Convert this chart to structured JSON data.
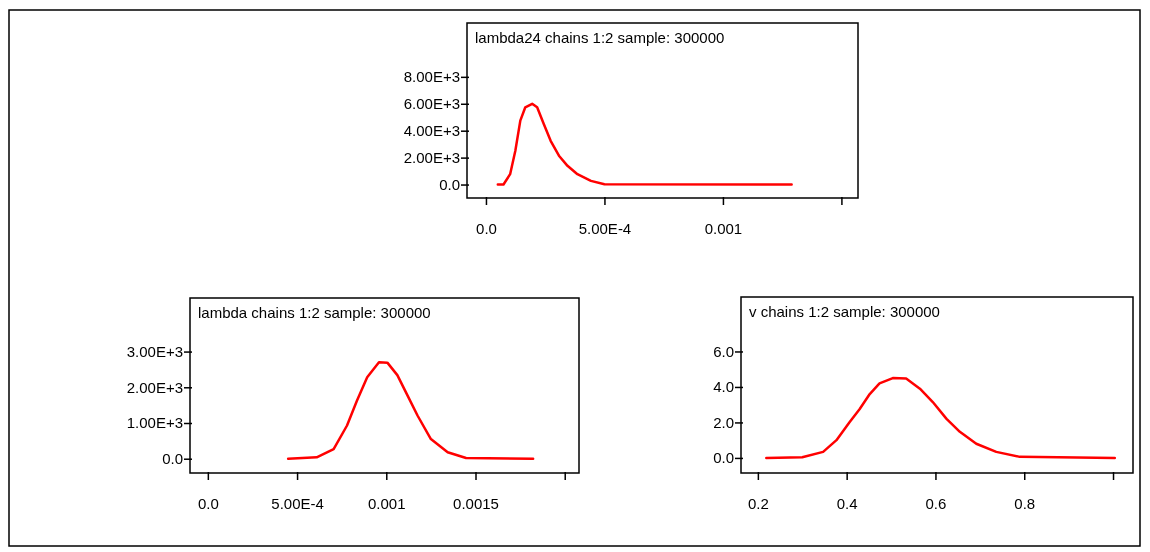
{
  "chart_data": [
    {
      "type": "line",
      "title": "lambda24 chains 1:2 sample: 300000",
      "xlim": [
        -8e-05,
        0.00157
      ],
      "ylim": [
        -1000,
        12000
      ],
      "xticks": [
        {
          "value": 0,
          "label": "0.0"
        },
        {
          "value": 0.0005,
          "label": "5.00E-4"
        },
        0.001,
        {
          "value": 0.0015,
          "label": null
        }
      ],
      "yticks": [
        {
          "value": 0,
          "label": "0.0"
        },
        {
          "value": 2000,
          "label": "2.00E+3"
        },
        {
          "value": 4000,
          "label": "4.00E+3"
        },
        {
          "value": 6000,
          "label": "6.00E+3"
        },
        {
          "value": 8000,
          "label": "8.00E+3"
        }
      ],
      "series": [
        {
          "color": "#ff0000",
          "x": [
            5e-05,
            7.4e-05,
            0.000102,
            0.000124,
            0.000145,
            0.000166,
            0.000195,
            0.000216,
            0.000244,
            0.000273,
            0.000308,
            0.000344,
            0.000386,
            0.000443,
            0.0005,
            0.00129
          ],
          "values": [
            0,
            0,
            770,
            2510,
            4750,
            5740,
            6000,
            5740,
            4500,
            3250,
            2140,
            1390,
            770,
            270,
            25,
            0
          ]
        }
      ]
    },
    {
      "type": "line",
      "title": "lambda chains 1:2 sample: 300000",
      "xlim": [
        -0.0001,
        0.00208
      ],
      "ylim": [
        -400,
        4500
      ],
      "xticks": [
        {
          "value": 0,
          "label": "0.0"
        },
        {
          "value": 0.0005,
          "label": "5.00E-4"
        },
        0.001,
        0.0015,
        {
          "value": 0.002,
          "label": null
        }
      ],
      "yticks": [
        {
          "value": 0,
          "label": "0.0"
        },
        {
          "value": 1000,
          "label": "1.00E+3"
        },
        {
          "value": 2000,
          "label": "2.00E+3"
        },
        {
          "value": 3000,
          "label": "3.00E+3"
        }
      ],
      "series": [
        {
          "color": "#ff0000",
          "x": [
            0.00045,
            0.00061,
            0.000705,
            0.00078,
            0.000836,
            0.000893,
            0.000959,
            0.001006,
            0.001062,
            0.001118,
            0.001175,
            0.00125,
            0.001344,
            0.001447,
            0.001823
          ],
          "values": [
            0,
            40,
            270,
            930,
            1630,
            2280,
            2700,
            2690,
            2340,
            1780,
            1210,
            550,
            180,
            20,
            0
          ]
        }
      ]
    },
    {
      "type": "line",
      "title": "v chains 1:2 sample: 300000",
      "xlim": [
        0.162,
        1.045
      ],
      "ylim": [
        -0.85,
        9.07
      ],
      "xticks": [
        0.2,
        0.4,
        0.6,
        0.8,
        {
          "value": 1.0,
          "label": null
        }
      ],
      "yticks": [
        {
          "value": 0,
          "label": "0.0"
        },
        {
          "value": 2,
          "label": "2.0"
        },
        {
          "value": 4,
          "label": "4.0"
        },
        {
          "value": 6,
          "label": "6.0"
        }
      ],
      "series": [
        {
          "color": "#ff0000",
          "x": [
            0.219,
            0.3,
            0.347,
            0.377,
            0.406,
            0.429,
            0.452,
            0.474,
            0.504,
            0.534,
            0.565,
            0.594,
            0.625,
            0.655,
            0.692,
            0.737,
            0.79,
            1.004
          ],
          "values": [
            0,
            0.04,
            0.34,
            1.0,
            2.0,
            2.74,
            3.6,
            4.2,
            4.5,
            4.47,
            3.9,
            3.15,
            2.2,
            1.47,
            0.8,
            0.34,
            0.06,
            0
          ]
        }
      ]
    }
  ]
}
